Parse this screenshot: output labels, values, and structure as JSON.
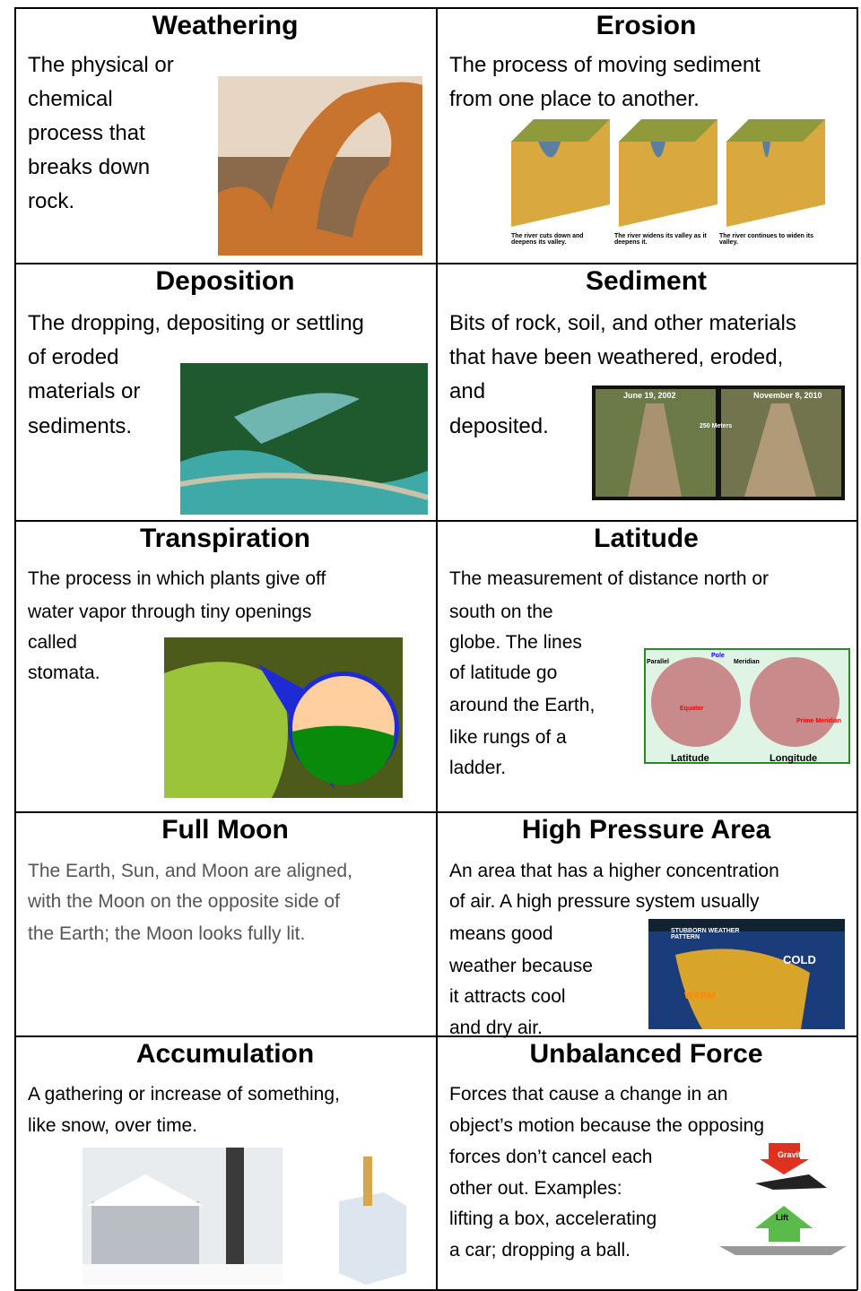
{
  "cells": [
    {
      "title": "Weathering",
      "lines": [
        "The physical or",
        "chemical",
        "process that",
        "breaks down",
        "rock."
      ]
    },
    {
      "title": "Erosion",
      "lines": [
        "The process of moving sediment",
        "from one place to another."
      ],
      "image_text": [
        "The river cuts down and deepens its valley.",
        "The river widens its valley as it deepens it.",
        "The river continues to widen its valley."
      ]
    },
    {
      "title": "Deposition",
      "lines": [
        "The dropping, depositing or settling",
        "of eroded",
        "materials or",
        "sediments."
      ]
    },
    {
      "title": "Sediment",
      "lines": [
        "Bits of rock, soil, and other materials",
        "that have been weathered, eroded,",
        "and",
        "deposited."
      ],
      "image_text": [
        "June 19, 2002",
        "November 8, 2010",
        "250 Meters"
      ]
    },
    {
      "title": "Transpiration",
      "lines": [
        "The process in which plants give off",
        "water vapor through tiny openings",
        "called",
        "stomata."
      ]
    },
    {
      "title": "Latitude",
      "lines": [
        "The measurement of distance north or",
        "south on the",
        "globe. The lines",
        "of latitude go",
        "around the Earth,",
        "like rungs of a",
        "ladder."
      ],
      "image_text": [
        "Parallel",
        "Pole",
        "Meridian",
        "Equator",
        "Prime Meridian",
        "Latitude",
        "Longitude"
      ]
    },
    {
      "title": "Full Moon",
      "lines": [
        "The Earth, Sun, and Moon are aligned,",
        "with the Moon on the opposite side of",
        "the Earth; the Moon looks fully lit."
      ]
    },
    {
      "title": "High Pressure Area",
      "lines": [
        "An area that has a higher concentration",
        "of air. A high pressure system usually",
        "means good",
        "weather because",
        "it attracts cool",
        "and dry air."
      ],
      "image_text": [
        "STUBBORN WEATHER PATTERN",
        "COLD",
        "WARM"
      ]
    },
    {
      "title": "Accumulation",
      "lines": [
        "A gathering or increase of something,",
        "like snow, over time."
      ]
    },
    {
      "title": "Unbalanced Force",
      "lines": [
        "Forces that cause a change in an",
        "object’s motion because the opposing",
        "forces don’t cancel each",
        "other out. Examples:",
        "lifting a box, accelerating",
        "a car; dropping a ball."
      ],
      "image_text": [
        "Gravity",
        "Lift"
      ]
    }
  ]
}
